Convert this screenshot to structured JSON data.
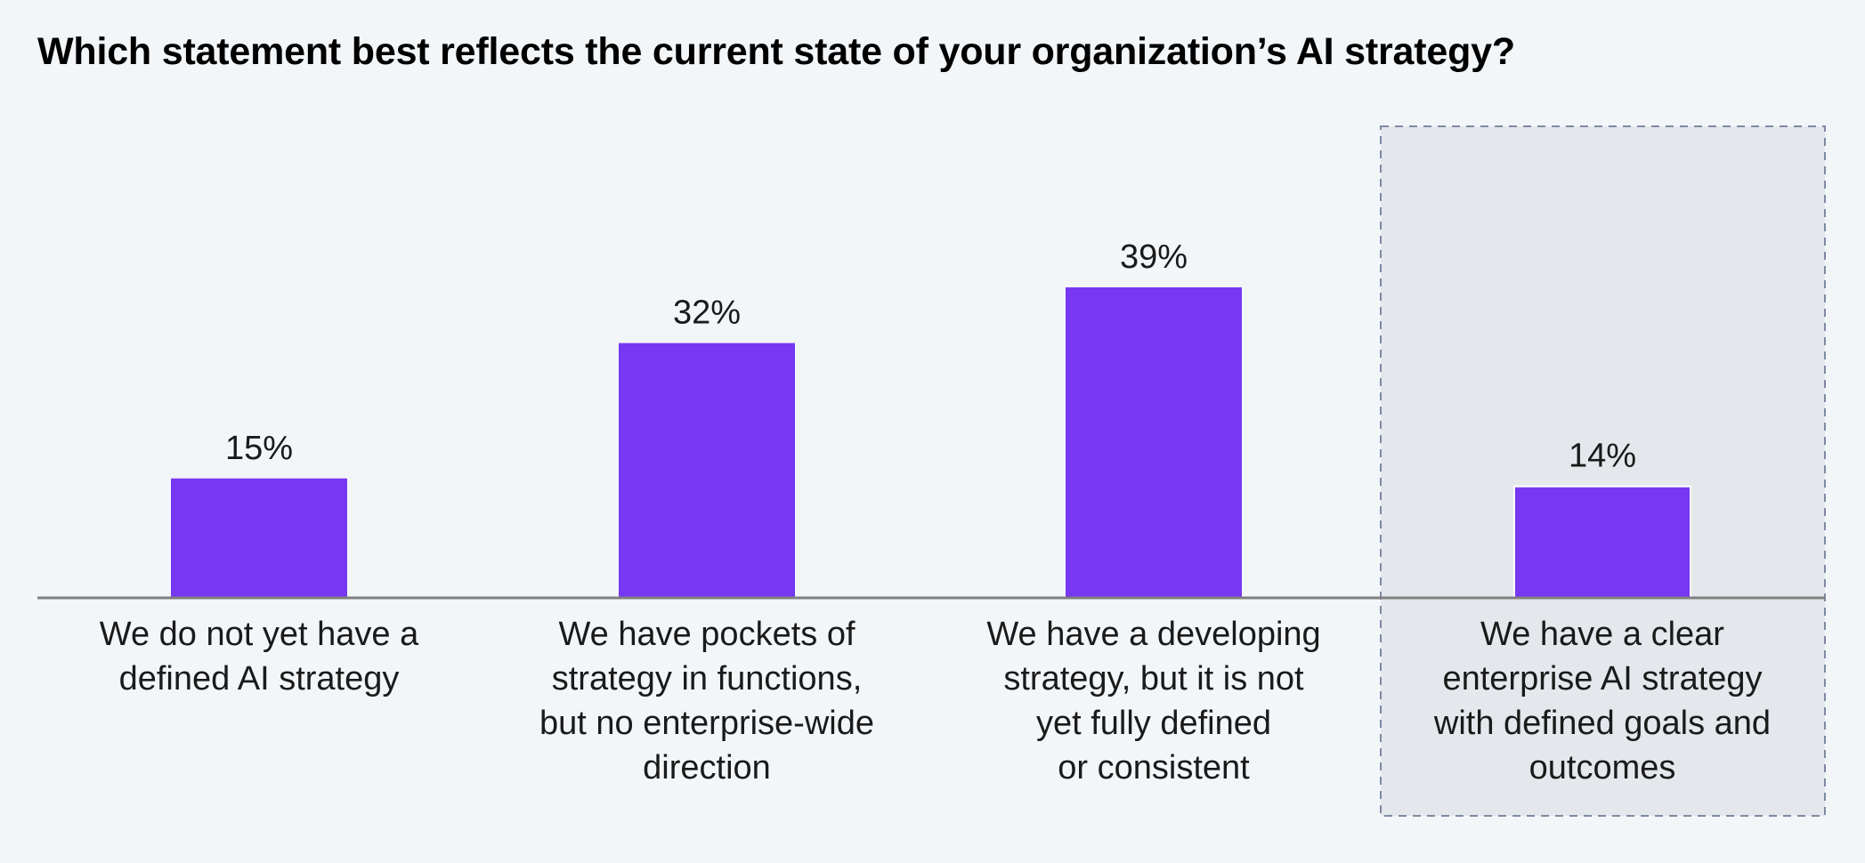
{
  "chart_data": {
    "type": "bar",
    "title": "Which statement best reflects the current state of your organization’s AI strategy?",
    "categories": [
      [
        "We do not yet have a",
        "defined AI strategy"
      ],
      [
        "We have pockets of",
        "strategy in functions,",
        "but no enterprise-wide",
        "direction"
      ],
      [
        "We have a developing",
        "strategy, but it is not",
        "yet fully defined",
        "or consistent"
      ],
      [
        "We have a clear",
        "enterprise AI strategy",
        "with defined goals and",
        "outcomes"
      ]
    ],
    "values": [
      15,
      32,
      39,
      14
    ],
    "value_labels": [
      "15%",
      "32%",
      "39%",
      "14%"
    ],
    "unit": "%",
    "highlighted_category_index": 3,
    "xlabel": "",
    "ylabel": "",
    "grid": false,
    "colors": {
      "bar": "#7638f2",
      "highlight_fill": "#e4e7ec",
      "highlight_border": "#7d8aa3",
      "baseline": "#7f7f7f",
      "background": "#f3f6f9"
    }
  }
}
